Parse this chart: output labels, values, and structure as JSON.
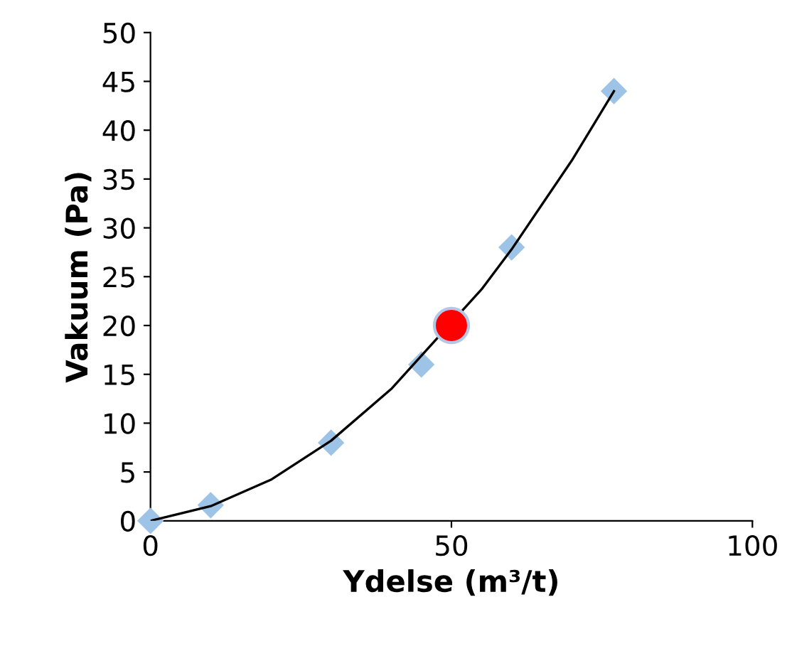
{
  "chart_data": {
    "type": "scatter",
    "xlabel": "Ydelse (m³/t)",
    "ylabel": "Vakuum (Pa)",
    "xlim": [
      0,
      100
    ],
    "xticks": [
      0,
      50,
      100
    ],
    "ylim": [
      0,
      50
    ],
    "yticks": [
      0,
      5,
      10,
      15,
      20,
      25,
      30,
      35,
      40,
      45,
      50
    ],
    "grid": false,
    "series": [
      {
        "type": "line",
        "color": "#000000",
        "marker": "none",
        "x": [
          0,
          10,
          20,
          30,
          40,
          55,
          60,
          70,
          77
        ],
        "values": [
          0,
          1.5,
          4.2,
          8.2,
          13.5,
          23.7,
          27.8,
          36.9,
          44
        ]
      },
      {
        "color": "#9dc3e6",
        "marker": "diamond",
        "x": [
          0,
          10,
          30,
          45,
          60,
          77
        ],
        "values": [
          0,
          1.6,
          8,
          16,
          28,
          44
        ]
      },
      {
        "color": "#ff0000",
        "marker": "circle",
        "x": [
          50
        ],
        "values": [
          20
        ]
      }
    ]
  }
}
